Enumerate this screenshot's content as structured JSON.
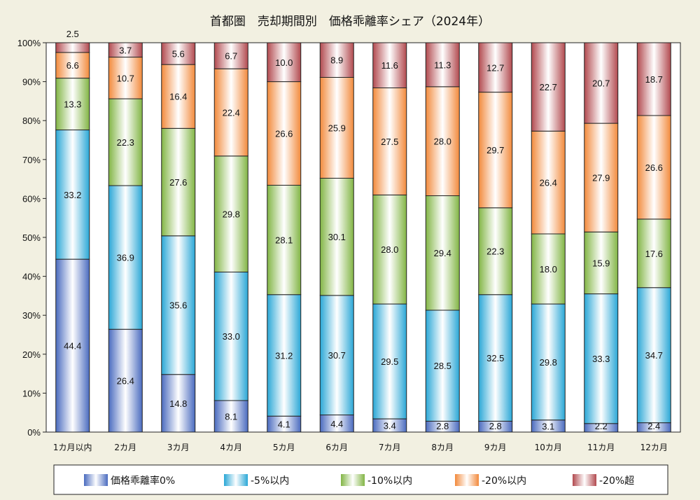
{
  "chart_data": {
    "type": "bar",
    "stacked": true,
    "title": "首都圏　売却期間別　価格乖離率シェア（2024年）",
    "categories": [
      "1カ月以内",
      "2カ月",
      "3カ月",
      "4カ月",
      "5カ月",
      "6カ月",
      "7カ月",
      "8カ月",
      "9カ月",
      "10カ月",
      "11カ月",
      "12カ月"
    ],
    "series": [
      {
        "name": "価格乖離率0%",
        "color": "#4a6bbf",
        "values": [
          44.4,
          26.4,
          14.8,
          8.1,
          4.1,
          4.4,
          3.4,
          2.8,
          2.8,
          3.1,
          2.2,
          2.4
        ]
      },
      {
        "name": "-5%以内",
        "color": "#2aa7d6",
        "values": [
          33.2,
          36.9,
          35.6,
          33.0,
          31.2,
          30.7,
          29.5,
          28.5,
          32.5,
          29.8,
          33.3,
          34.7
        ]
      },
      {
        "name": "-10%以内",
        "color": "#82b545",
        "values": [
          13.3,
          22.3,
          27.6,
          29.8,
          28.1,
          30.1,
          28.0,
          29.4,
          22.3,
          18.0,
          15.9,
          17.6
        ]
      },
      {
        "name": "-20%以内",
        "color": "#f28a3c",
        "values": [
          6.6,
          10.7,
          16.4,
          22.4,
          26.6,
          25.9,
          27.5,
          28.0,
          29.7,
          26.4,
          27.9,
          26.6
        ]
      },
      {
        "name": "-20%超",
        "color": "#b24a4f",
        "values": [
          2.5,
          3.7,
          5.6,
          6.7,
          10.0,
          8.9,
          11.6,
          11.3,
          12.7,
          22.7,
          20.7,
          18.7
        ]
      }
    ],
    "ylim": [
      0,
      100
    ],
    "yticks": [
      "0%",
      "10%",
      "20%",
      "30%",
      "40%",
      "50%",
      "60%",
      "70%",
      "80%",
      "90%",
      "100%"
    ],
    "legend_position": "bottom",
    "grid": false
  }
}
